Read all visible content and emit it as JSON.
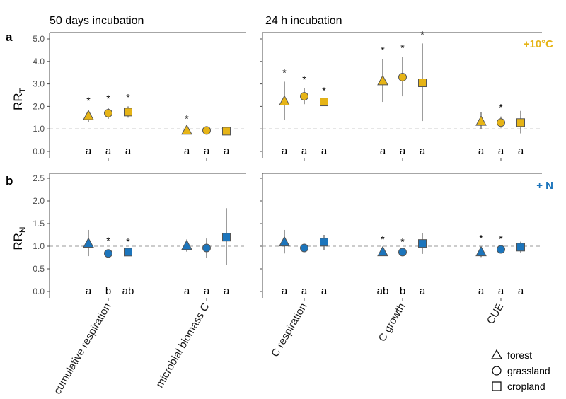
{
  "chart_data": {
    "type": "scatter",
    "group_titles": [
      "50 days incubation",
      "24 h incubation"
    ],
    "categories": [
      "cumulative respiration",
      "microbial biomass C",
      "C respiration",
      "C growth",
      "CUE"
    ],
    "legend": [
      "forest",
      "grassland",
      "cropland"
    ],
    "panels": [
      {
        "tag": "a",
        "ylabel": "RR",
        "ylabel_sub": "T",
        "treatment": "+10°C",
        "color": "#E6B416",
        "ylim": [
          0,
          5
        ],
        "yticks": [
          "0.0",
          "1.0",
          "2.0",
          "3.0",
          "4.0",
          "5.0"
        ],
        "reference_line": 1.0,
        "points": [
          {
            "category": "cumulative respiration",
            "series": "forest",
            "y": 1.6,
            "low": 1.3,
            "high": 1.85,
            "sig": "*",
            "letter": "a"
          },
          {
            "category": "cumulative respiration",
            "series": "grassland",
            "y": 1.7,
            "low": 1.45,
            "high": 1.95,
            "sig": "*",
            "letter": "a"
          },
          {
            "category": "cumulative respiration",
            "series": "cropland",
            "y": 1.75,
            "low": 1.5,
            "high": 2.0,
            "sig": "*",
            "letter": "a"
          },
          {
            "category": "microbial biomass C",
            "series": "forest",
            "y": 0.95,
            "low": 0.85,
            "high": 1.05,
            "sig": "*",
            "letter": "a"
          },
          {
            "category": "microbial biomass C",
            "series": "grassland",
            "y": 0.93,
            "low": 0.82,
            "high": 1.03,
            "sig": "",
            "letter": "a"
          },
          {
            "category": "microbial biomass C",
            "series": "cropland",
            "y": 0.9,
            "low": 0.75,
            "high": 1.05,
            "sig": "",
            "letter": "a"
          },
          {
            "category": "C respiration",
            "series": "forest",
            "y": 2.25,
            "low": 1.4,
            "high": 3.1,
            "sig": "*",
            "letter": "a"
          },
          {
            "category": "C respiration",
            "series": "grassland",
            "y": 2.45,
            "low": 2.1,
            "high": 2.8,
            "sig": "*",
            "letter": "a"
          },
          {
            "category": "C respiration",
            "series": "cropland",
            "y": 2.2,
            "low": 2.05,
            "high": 2.3,
            "sig": "*",
            "letter": "a"
          },
          {
            "category": "C growth",
            "series": "forest",
            "y": 3.15,
            "low": 2.2,
            "high": 4.1,
            "sig": "*",
            "letter": "a"
          },
          {
            "category": "C growth",
            "series": "grassland",
            "y": 3.3,
            "low": 2.45,
            "high": 4.2,
            "sig": "*",
            "letter": "a"
          },
          {
            "category": "C growth",
            "series": "cropland",
            "y": 3.05,
            "low": 1.35,
            "high": 4.8,
            "sig": "*",
            "letter": "a"
          },
          {
            "category": "CUE",
            "series": "forest",
            "y": 1.35,
            "low": 1.0,
            "high": 1.75,
            "sig": "",
            "letter": "a"
          },
          {
            "category": "CUE",
            "series": "grassland",
            "y": 1.28,
            "low": 1.05,
            "high": 1.55,
            "sig": "*",
            "letter": "a"
          },
          {
            "category": "CUE",
            "series": "cropland",
            "y": 1.28,
            "low": 0.8,
            "high": 1.8,
            "sig": "",
            "letter": "a"
          }
        ]
      },
      {
        "tag": "b",
        "ylabel": "RR",
        "ylabel_sub": "N",
        "treatment": "+ N",
        "color": "#1C75BC",
        "ylim": [
          0,
          2.5
        ],
        "yticks": [
          "0.0",
          "0.5",
          "1.0",
          "1.5",
          "2.0",
          "2.5"
        ],
        "reference_line": 1.0,
        "points": [
          {
            "category": "cumulative respiration",
            "series": "forest",
            "y": 1.07,
            "low": 0.78,
            "high": 1.36,
            "sig": "",
            "letter": "a"
          },
          {
            "category": "cumulative respiration",
            "series": "grassland",
            "y": 0.84,
            "low": 0.77,
            "high": 0.92,
            "sig": "*",
            "letter": "b"
          },
          {
            "category": "cumulative respiration",
            "series": "cropland",
            "y": 0.87,
            "low": 0.84,
            "high": 0.9,
            "sig": "*",
            "letter": "ab"
          },
          {
            "category": "microbial biomass C",
            "series": "forest",
            "y": 1.02,
            "low": 0.88,
            "high": 1.15,
            "sig": "",
            "letter": "a"
          },
          {
            "category": "microbial biomass C",
            "series": "grassland",
            "y": 0.96,
            "low": 0.74,
            "high": 1.17,
            "sig": "",
            "letter": "a"
          },
          {
            "category": "microbial biomass C",
            "series": "cropland",
            "y": 1.2,
            "low": 0.58,
            "high": 1.84,
            "sig": "",
            "letter": "a"
          },
          {
            "category": "C respiration",
            "series": "forest",
            "y": 1.1,
            "low": 0.84,
            "high": 1.36,
            "sig": "",
            "letter": "a"
          },
          {
            "category": "C respiration",
            "series": "grassland",
            "y": 0.96,
            "low": 0.89,
            "high": 1.03,
            "sig": "",
            "letter": "a"
          },
          {
            "category": "C respiration",
            "series": "cropland",
            "y": 1.09,
            "low": 0.92,
            "high": 1.25,
            "sig": "",
            "letter": "a"
          },
          {
            "category": "C growth",
            "series": "forest",
            "y": 0.88,
            "low": 0.82,
            "high": 0.95,
            "sig": "*",
            "letter": "ab"
          },
          {
            "category": "C growth",
            "series": "grassland",
            "y": 0.87,
            "low": 0.84,
            "high": 0.9,
            "sig": "*",
            "letter": "b"
          },
          {
            "category": "C growth",
            "series": "cropland",
            "y": 1.06,
            "low": 0.83,
            "high": 1.29,
            "sig": "",
            "letter": "a"
          },
          {
            "category": "CUE",
            "series": "forest",
            "y": 0.88,
            "low": 0.76,
            "high": 0.98,
            "sig": "*",
            "letter": "a"
          },
          {
            "category": "CUE",
            "series": "grassland",
            "y": 0.93,
            "low": 0.9,
            "high": 0.96,
            "sig": "*",
            "letter": "a"
          },
          {
            "category": "CUE",
            "series": "cropland",
            "y": 0.98,
            "low": 0.86,
            "high": 1.1,
            "sig": "",
            "letter": "a"
          }
        ]
      }
    ]
  }
}
